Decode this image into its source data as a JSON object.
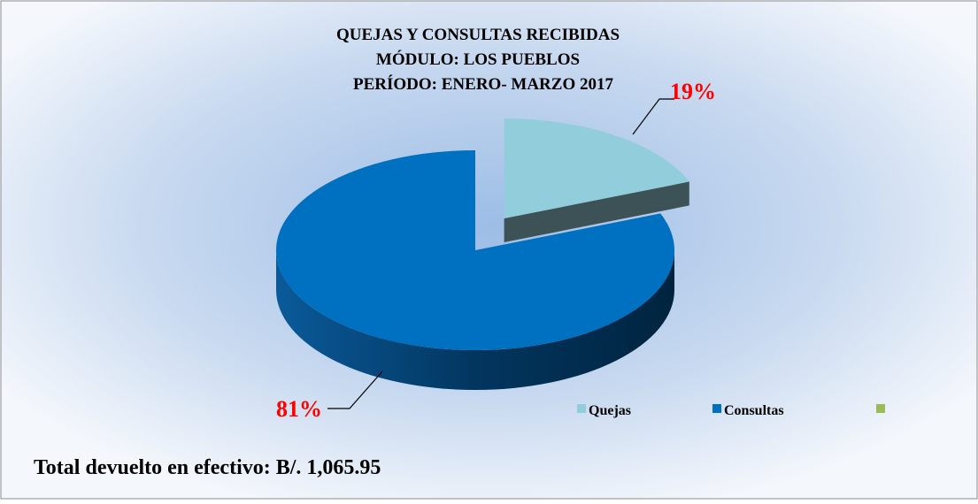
{
  "chart_data": {
    "type": "pie3d",
    "title": [
      "QUEJAS Y CONSULTAS RECIBIDAS",
      "MÓDULO: LOS PUEBLOS",
      "PERÍODO: ENERO- MARZO 2017"
    ],
    "categories": [
      "Quejas",
      "Consultas",
      null
    ],
    "values": [
      19,
      81,
      null
    ],
    "value_labels": [
      "19%",
      "81%",
      null
    ],
    "colors": [
      "#92cddc",
      "#0070c0",
      "#9bbb59"
    ],
    "legend": "bottom-right",
    "footer": "Total devuelto en efectivo: B/. 1,065.95"
  }
}
